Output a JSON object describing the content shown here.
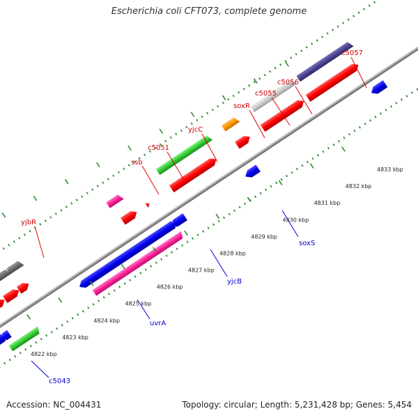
{
  "title": "Escherichia coli CFT073, complete genome",
  "footer": {
    "accession": "Accession: NC_004431",
    "summary": "Topology: circular; Length: 5,231,428 bp; Genes: 5,454"
  },
  "colors": {
    "backbone": "#8a8a8a",
    "tick": "#2e8b2e",
    "forward_label": "#cc0000",
    "reverse_label": "#0000cc"
  },
  "ruler": {
    "unit": "kbp",
    "ticks": [
      {
        "kbp": 4822,
        "label": "4822 kbp"
      },
      {
        "kbp": 4823,
        "label": "4823 kbp"
      },
      {
        "kbp": 4824,
        "label": "4824 kbp"
      },
      {
        "kbp": 4825,
        "label": "4825 kbp"
      },
      {
        "kbp": 4826,
        "label": "4826 kbp"
      },
      {
        "kbp": 4827,
        "label": "4827 kbp"
      },
      {
        "kbp": 4828,
        "label": "4828 kbp"
      },
      {
        "kbp": 4829,
        "label": "4829 kbp"
      },
      {
        "kbp": 4830,
        "label": "4830 kbp"
      },
      {
        "kbp": 4831,
        "label": "4831 kbp"
      },
      {
        "kbp": 4832,
        "label": "4832 kbp"
      },
      {
        "kbp": 4833,
        "label": "4833 kbp"
      }
    ]
  },
  "gene_labels": {
    "forward": [
      "yjbR",
      "ssb",
      "c5051",
      "yjcC",
      "soxR",
      "c5055",
      "c5056",
      "c5057"
    ],
    "reverse": [
      "c5043",
      "uvrA",
      "yjcB",
      "soxS"
    ]
  }
}
